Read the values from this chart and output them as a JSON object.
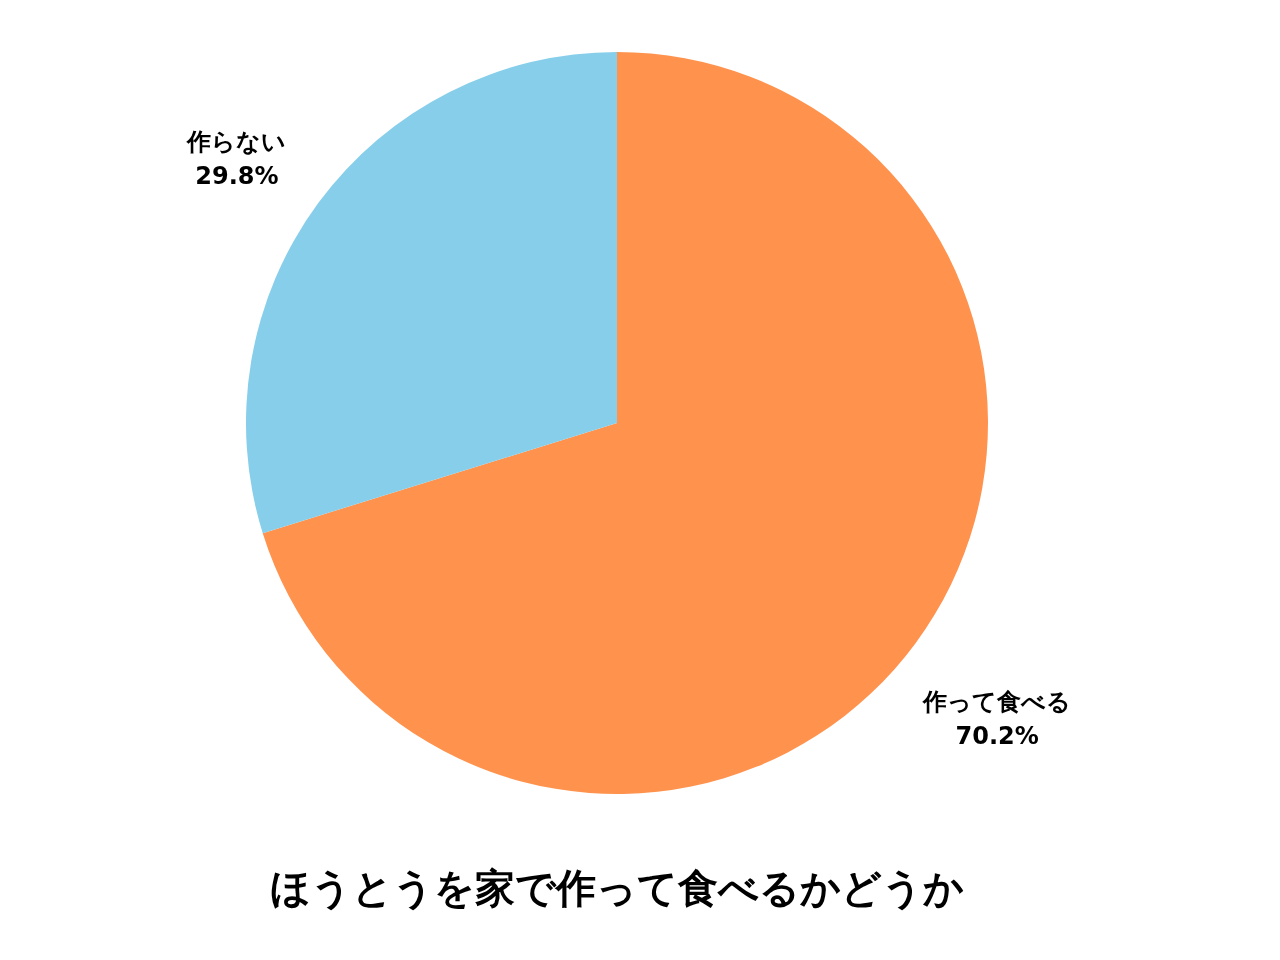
{
  "chart_data": {
    "type": "pie",
    "title": "ほうとうを家で作って食べるかどうか",
    "categories": [
      "作って食べる",
      "作らない"
    ],
    "values": [
      70.2,
      29.8
    ],
    "value_labels": [
      "70.2%",
      "29.8%"
    ],
    "colors": [
      "#ff924d",
      "#87ceea"
    ]
  }
}
